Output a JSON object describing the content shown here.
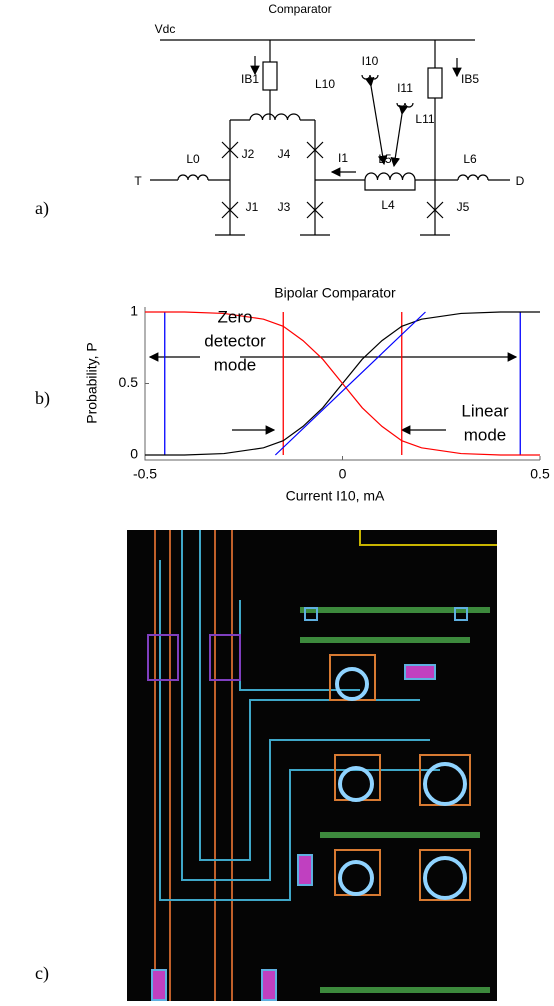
{
  "panels": {
    "a": {
      "label": "a)",
      "title": "Comparator",
      "texts": [
        "Vdc",
        "IB1",
        "L10",
        "I10",
        "I11",
        "L11",
        "IB5",
        "J2",
        "J4",
        "I1",
        "L5",
        "L0",
        "L6",
        "T",
        "D",
        "J1",
        "J3",
        "L4",
        "J5"
      ]
    },
    "b": {
      "label": "b)"
    },
    "c": {
      "label": "c)"
    }
  },
  "chart_data": {
    "type": "line",
    "title": "Bipolar Comparator",
    "xlabel": "Current I10, mA",
    "ylabel": "Probability, P",
    "xlim": [
      -0.5,
      0.5
    ],
    "ylim": [
      0,
      1
    ],
    "xticks": [
      -0.5,
      0,
      0.5
    ],
    "yticks": [
      0,
      0.5,
      1
    ],
    "grid": false,
    "series": [
      {
        "color": "#000000",
        "x": [
          -0.5,
          -0.4,
          -0.3,
          -0.2,
          -0.15,
          -0.1,
          -0.05,
          0,
          0.05,
          0.1,
          0.15,
          0.2,
          0.3,
          0.4,
          0.5
        ],
        "values": [
          0,
          0,
          0.01,
          0.05,
          0.1,
          0.2,
          0.33,
          0.5,
          0.67,
          0.8,
          0.9,
          0.95,
          0.99,
          1,
          1
        ]
      },
      {
        "color": "#ff0000",
        "x": [
          -0.5,
          -0.4,
          -0.3,
          -0.2,
          -0.15,
          -0.1,
          -0.05,
          0,
          0.05,
          0.1,
          0.15,
          0.2,
          0.3,
          0.4,
          0.5
        ],
        "values": [
          1,
          1,
          0.99,
          0.95,
          0.9,
          0.8,
          0.67,
          0.5,
          0.33,
          0.2,
          0.1,
          0.05,
          0.01,
          0,
          0
        ]
      },
      {
        "color": "#0000ff",
        "x": [
          -0.17,
          0.21
        ],
        "values": [
          0,
          1
        ]
      }
    ],
    "vlines": [
      {
        "x": -0.45,
        "color": "#0000ff"
      },
      {
        "x": -0.15,
        "color": "#ff0000"
      },
      {
        "x": 0.15,
        "color": "#ff0000"
      },
      {
        "x": 0.45,
        "color": "#0000ff"
      }
    ],
    "annotations": [
      {
        "lines": [
          "Zero",
          "detector",
          "mode"
        ]
      },
      {
        "lines": [
          "Linear",
          "mode"
        ]
      }
    ]
  }
}
